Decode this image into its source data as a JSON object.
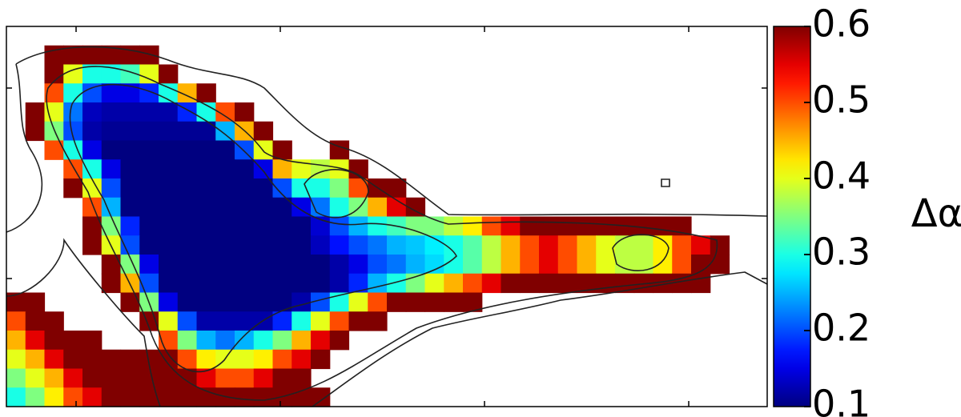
{
  "chart_data": {
    "type": "heatmap",
    "colormap": "jet",
    "zlim": [
      0.1,
      0.6
    ],
    "zticks": [
      0.1,
      0.2,
      0.3,
      0.4,
      0.5,
      0.6
    ],
    "colorbar_label": "Δα",
    "z": [
      [
        null,
        null,
        null,
        null,
        null,
        null,
        null,
        null,
        null,
        null,
        null,
        null,
        null,
        null,
        null,
        null,
        null,
        null,
        null,
        null,
        null,
        null,
        null,
        null,
        null,
        null,
        null,
        null,
        null,
        null,
        null,
        null,
        null,
        null,
        null,
        null,
        null,
        null,
        null,
        null
      ],
      [
        null,
        null,
        0.6,
        0.6,
        0.6,
        0.6,
        0.6,
        0.6,
        null,
        null,
        null,
        null,
        null,
        null,
        null,
        null,
        null,
        null,
        null,
        null,
        null,
        null,
        null,
        null,
        null,
        null,
        null,
        null,
        null,
        null,
        null,
        null,
        null,
        null,
        null,
        null,
        null,
        null,
        null,
        null
      ],
      [
        null,
        null,
        0.6,
        0.4,
        0.3,
        0.3,
        0.32,
        0.4,
        0.6,
        null,
        null,
        null,
        null,
        null,
        null,
        null,
        null,
        null,
        null,
        null,
        null,
        null,
        null,
        null,
        null,
        null,
        null,
        null,
        null,
        null,
        null,
        null,
        null,
        null,
        null,
        null,
        null,
        null,
        null,
        null
      ],
      [
        null,
        null,
        0.5,
        0.3,
        0.2,
        0.15,
        0.15,
        0.18,
        0.3,
        0.45,
        0.6,
        null,
        null,
        null,
        null,
        null,
        null,
        null,
        null,
        null,
        null,
        null,
        null,
        null,
        null,
        null,
        null,
        null,
        null,
        null,
        null,
        null,
        null,
        null,
        null,
        null,
        null,
        null,
        null,
        null
      ],
      [
        null,
        0.6,
        0.4,
        0.22,
        0.13,
        0.12,
        0.12,
        0.12,
        0.12,
        0.18,
        0.3,
        0.5,
        0.6,
        null,
        null,
        null,
        null,
        null,
        null,
        null,
        null,
        null,
        null,
        null,
        null,
        null,
        null,
        null,
        null,
        null,
        null,
        null,
        null,
        null,
        null,
        null,
        null,
        null,
        null,
        null
      ],
      [
        null,
        0.6,
        0.35,
        0.2,
        0.12,
        0.11,
        0.11,
        0.11,
        0.11,
        0.11,
        0.11,
        0.25,
        0.45,
        0.6,
        null,
        null,
        null,
        null,
        null,
        null,
        null,
        null,
        null,
        null,
        null,
        null,
        null,
        null,
        null,
        null,
        null,
        null,
        null,
        null,
        null,
        null,
        null,
        null,
        null,
        null
      ],
      [
        null,
        null,
        0.5,
        0.3,
        0.15,
        0.1,
        0.1,
        0.1,
        0.1,
        0.1,
        0.1,
        0.1,
        0.2,
        0.4,
        0.6,
        null,
        null,
        0.6,
        null,
        null,
        null,
        null,
        null,
        null,
        null,
        null,
        null,
        null,
        null,
        null,
        null,
        null,
        null,
        null,
        null,
        null,
        null,
        null,
        null,
        null
      ],
      [
        null,
        null,
        null,
        0.5,
        0.3,
        0.15,
        0.1,
        0.1,
        0.1,
        0.1,
        0.1,
        0.1,
        0.1,
        0.15,
        0.45,
        0.4,
        0.38,
        0.4,
        0.6,
        null,
        null,
        null,
        null,
        null,
        null,
        null,
        null,
        null,
        null,
        null,
        null,
        null,
        null,
        null,
        null,
        null,
        null,
        null,
        null,
        null
      ],
      [
        null,
        null,
        null,
        0.6,
        0.4,
        0.2,
        0.1,
        0.1,
        0.1,
        0.1,
        0.1,
        0.1,
        0.1,
        0.1,
        0.2,
        0.3,
        0.3,
        0.35,
        0.5,
        0.6,
        0.6,
        null,
        null,
        null,
        null,
        null,
        null,
        null,
        null,
        null,
        null,
        null,
        null,
        null,
        null,
        null,
        null,
        null,
        null,
        null
      ],
      [
        null,
        null,
        null,
        null,
        0.5,
        0.25,
        0.1,
        0.1,
        0.1,
        0.1,
        0.1,
        0.1,
        0.1,
        0.1,
        0.1,
        0.15,
        0.22,
        0.3,
        0.35,
        0.45,
        0.55,
        0.6,
        null,
        null,
        null,
        null,
        null,
        null,
        null,
        null,
        null,
        null,
        null,
        null,
        null,
        null,
        null,
        null,
        null,
        null
      ],
      [
        null,
        null,
        null,
        null,
        0.6,
        0.35,
        0.18,
        0.1,
        0.1,
        0.1,
        0.1,
        0.1,
        0.1,
        0.1,
        0.1,
        0.1,
        0.14,
        0.2,
        0.25,
        0.3,
        0.32,
        0.35,
        0.35,
        0.38,
        0.42,
        0.5,
        0.55,
        0.6,
        0.6,
        0.6,
        0.6,
        0.6,
        0.6,
        0.6,
        0.6,
        0.6,
        null,
        null,
        null,
        null
      ],
      [
        null,
        null,
        null,
        null,
        0.6,
        0.4,
        0.2,
        0.1,
        0.1,
        0.1,
        0.1,
        0.1,
        0.1,
        0.1,
        0.1,
        0.1,
        0.13,
        0.17,
        0.2,
        0.22,
        0.25,
        0.26,
        0.28,
        0.3,
        0.33,
        0.38,
        0.45,
        0.5,
        0.55,
        0.5,
        0.45,
        0.4,
        0.38,
        0.38,
        0.42,
        0.5,
        0.55,
        0.6,
        null,
        null
      ],
      [
        null,
        null,
        null,
        null,
        null,
        0.6,
        0.35,
        0.15,
        0.1,
        0.1,
        0.1,
        0.1,
        0.1,
        0.1,
        0.1,
        0.1,
        0.1,
        0.12,
        0.15,
        0.2,
        0.22,
        0.25,
        0.27,
        0.3,
        0.33,
        0.38,
        0.45,
        0.5,
        0.55,
        0.5,
        0.45,
        0.4,
        0.38,
        0.38,
        0.42,
        0.5,
        0.6,
        0.6,
        null,
        null
      ],
      [
        null,
        null,
        null,
        null,
        null,
        0.6,
        0.45,
        0.2,
        0.1,
        0.1,
        0.1,
        0.1,
        0.1,
        0.1,
        0.1,
        0.1,
        0.1,
        0.12,
        0.18,
        0.25,
        0.3,
        0.35,
        0.4,
        0.45,
        0.5,
        0.55,
        0.6,
        0.6,
        0.6,
        0.6,
        0.6,
        0.6,
        0.6,
        0.6,
        0.6,
        0.6,
        0.6,
        null,
        null,
        null
      ],
      [
        0.6,
        0.6,
        null,
        null,
        null,
        null,
        0.6,
        0.35,
        0.15,
        0.1,
        0.1,
        0.1,
        0.1,
        0.1,
        0.1,
        0.12,
        0.2,
        0.3,
        0.4,
        0.5,
        0.6,
        0.6,
        0.6,
        0.6,
        0.6,
        null,
        null,
        null,
        null,
        null,
        null,
        null,
        null,
        null,
        null,
        null,
        null,
        null,
        null,
        null
      ],
      [
        0.5,
        0.6,
        0.6,
        null,
        null,
        null,
        null,
        0.6,
        0.4,
        0.2,
        0.12,
        0.12,
        0.12,
        0.12,
        0.18,
        0.3,
        0.4,
        0.5,
        0.6,
        0.6,
        null,
        null,
        null,
        null,
        null,
        null,
        null,
        null,
        null,
        null,
        null,
        null,
        null,
        null,
        null,
        null,
        null,
        null,
        null,
        null
      ],
      [
        0.45,
        0.55,
        0.6,
        0.6,
        0.6,
        null,
        null,
        null,
        0.5,
        0.35,
        0.25,
        0.22,
        0.25,
        0.3,
        0.35,
        0.45,
        0.55,
        0.6,
        null,
        null,
        null,
        null,
        null,
        null,
        null,
        null,
        null,
        null,
        null,
        null,
        null,
        null,
        null,
        null,
        null,
        null,
        null,
        null,
        null,
        null
      ],
      [
        0.4,
        0.45,
        0.55,
        0.6,
        0.6,
        0.6,
        0.6,
        0.6,
        0.6,
        0.5,
        0.42,
        0.4,
        0.4,
        0.42,
        0.5,
        0.55,
        0.6,
        null,
        null,
        null,
        null,
        null,
        null,
        null,
        null,
        null,
        null,
        null,
        null,
        null,
        null,
        null,
        null,
        null,
        null,
        null,
        null,
        null,
        null,
        null
      ],
      [
        0.35,
        0.4,
        0.45,
        0.55,
        0.6,
        0.6,
        0.6,
        0.6,
        0.6,
        0.6,
        0.55,
        0.5,
        0.5,
        0.55,
        0.6,
        0.6,
        null,
        null,
        null,
        null,
        null,
        null,
        null,
        null,
        null,
        null,
        null,
        null,
        null,
        null,
        null,
        null,
        null,
        null,
        null,
        null,
        null,
        null,
        null,
        null
      ],
      [
        0.3,
        0.35,
        0.42,
        0.5,
        0.55,
        0.6,
        0.6,
        0.6,
        0.6,
        0.6,
        0.6,
        0.6,
        0.6,
        0.6,
        0.6,
        0.6,
        0.6,
        null,
        null,
        null,
        null,
        null,
        null,
        null,
        null,
        null,
        null,
        null,
        null,
        null,
        null,
        null,
        null,
        null,
        null,
        null,
        null,
        null,
        null,
        null
      ]
    ]
  }
}
